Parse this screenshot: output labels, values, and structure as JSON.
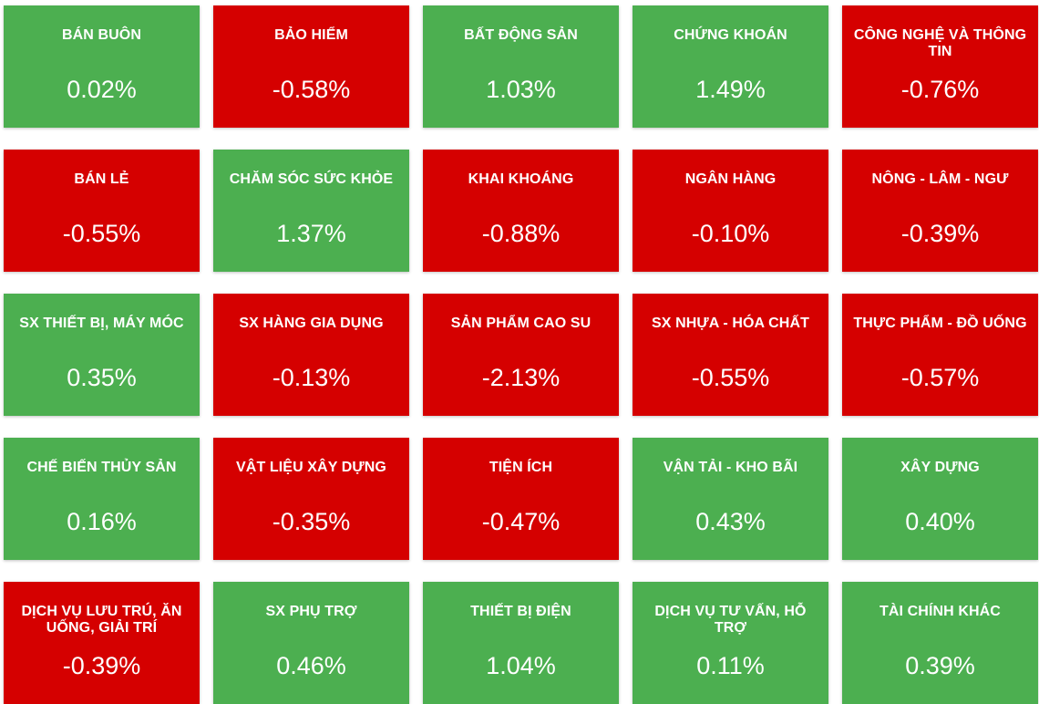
{
  "colors": {
    "positive": "#4caf50",
    "negative": "#d50000",
    "text": "#ffffff"
  },
  "sectors": [
    {
      "name": "BÁN BUÔN",
      "change": "0.02%",
      "direction": "up"
    },
    {
      "name": "BẢO HIỂM",
      "change": "-0.58%",
      "direction": "down"
    },
    {
      "name": "BẤT ĐỘNG SẢN",
      "change": "1.03%",
      "direction": "up"
    },
    {
      "name": "CHỨNG KHOÁN",
      "change": "1.49%",
      "direction": "up"
    },
    {
      "name": "CÔNG NGHỆ VÀ THÔNG TIN",
      "change": "-0.76%",
      "direction": "down"
    },
    {
      "name": "BÁN LẺ",
      "change": "-0.55%",
      "direction": "down"
    },
    {
      "name": "CHĂM SÓC SỨC KHỎE",
      "change": "1.37%",
      "direction": "up"
    },
    {
      "name": "KHAI KHOÁNG",
      "change": "-0.88%",
      "direction": "down"
    },
    {
      "name": "NGÂN HÀNG",
      "change": "-0.10%",
      "direction": "down"
    },
    {
      "name": "NÔNG - LÂM - NGƯ",
      "change": "-0.39%",
      "direction": "down"
    },
    {
      "name": "SX THIẾT BỊ, MÁY MÓC",
      "change": "0.35%",
      "direction": "up"
    },
    {
      "name": "SX HÀNG GIA DỤNG",
      "change": "-0.13%",
      "direction": "down"
    },
    {
      "name": "SẢN PHẨM CAO SU",
      "change": "-2.13%",
      "direction": "down"
    },
    {
      "name": "SX NHỰA - HÓA CHẤT",
      "change": "-0.55%",
      "direction": "down"
    },
    {
      "name": "THỰC PHẨM - ĐỒ UỐNG",
      "change": "-0.57%",
      "direction": "down"
    },
    {
      "name": "CHẾ BIẾN THỦY SẢN",
      "change": "0.16%",
      "direction": "up"
    },
    {
      "name": "VẬT LIỆU XÂY DỰNG",
      "change": "-0.35%",
      "direction": "down"
    },
    {
      "name": "TIỆN ÍCH",
      "change": "-0.47%",
      "direction": "down"
    },
    {
      "name": "VẬN TẢI - KHO BÃI",
      "change": "0.43%",
      "direction": "up"
    },
    {
      "name": "XÂY DỰNG",
      "change": "0.40%",
      "direction": "up"
    },
    {
      "name": "DỊCH VỤ LƯU TRÚ, ĂN UỐNG, GIẢI TRÍ",
      "change": "-0.39%",
      "direction": "down"
    },
    {
      "name": "SX PHỤ TRỢ",
      "change": "0.46%",
      "direction": "up"
    },
    {
      "name": "THIẾT BỊ ĐIỆN",
      "change": "1.04%",
      "direction": "up"
    },
    {
      "name": "DỊCH VỤ TƯ VẤN, HỖ TRỢ",
      "change": "0.11%",
      "direction": "up"
    },
    {
      "name": "TÀI CHÍNH KHÁC",
      "change": "0.39%",
      "direction": "up"
    }
  ]
}
